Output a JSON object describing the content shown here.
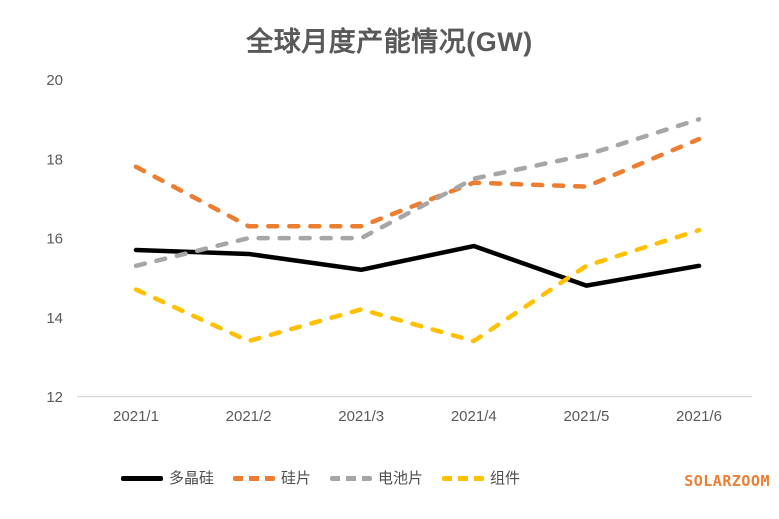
{
  "title": "全球月度产能情况(GW)",
  "watermark": "SOLARZOOM",
  "chart_data": {
    "type": "line",
    "title": "全球月度产能情况(GW)",
    "categories": [
      "2021/1",
      "2021/2",
      "2021/3",
      "2021/4",
      "2021/5",
      "2021/6"
    ],
    "series": [
      {
        "name": "多晶硅",
        "color": "#000000",
        "dash": "solid",
        "values": [
          15.7,
          15.6,
          15.2,
          15.8,
          14.8,
          15.3
        ]
      },
      {
        "name": "硅片",
        "color": "#ED7D31",
        "dash": "dashed",
        "values": [
          17.8,
          16.3,
          16.3,
          17.4,
          17.3,
          18.5
        ]
      },
      {
        "name": "电池片",
        "color": "#A6A6A6",
        "dash": "dashed",
        "values": [
          15.3,
          16.0,
          16.0,
          17.5,
          18.1,
          19.0
        ]
      },
      {
        "name": "组件",
        "color": "#FFC000",
        "dash": "dashed",
        "values": [
          14.7,
          13.4,
          14.2,
          13.4,
          15.3,
          16.2
        ]
      }
    ],
    "xlabel": "",
    "ylabel": "",
    "ylim": [
      12,
      20
    ],
    "yticks": [
      12,
      14,
      16,
      18,
      20
    ],
    "grid": false,
    "legend_position": "bottom",
    "colors": {
      "axis_line": "#D9D9D9",
      "tick_label": "#595959",
      "title": "#595959",
      "watermark": "#ED7D31"
    }
  }
}
